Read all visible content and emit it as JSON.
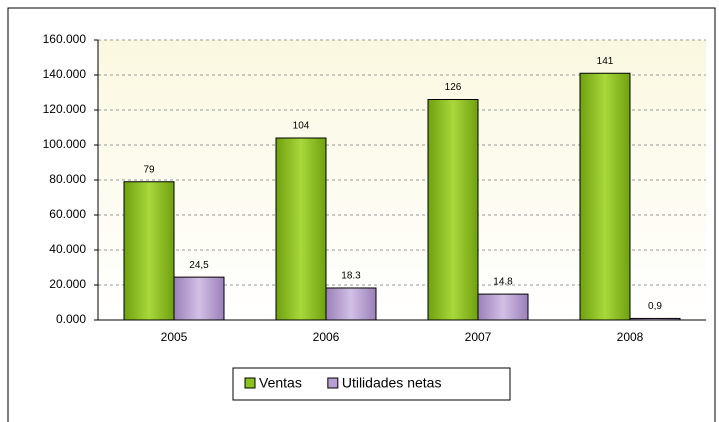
{
  "chart_data": {
    "type": "bar",
    "categories": [
      "2005",
      "2006",
      "2007",
      "2008"
    ],
    "series": [
      {
        "name": "Ventas",
        "color": "#8cc21c",
        "values": [
          79,
          104,
          126,
          141
        ]
      },
      {
        "name": "Utilidades netas",
        "color": "#b89ed2",
        "values": [
          24.5,
          18.3,
          14.8,
          0.9
        ],
        "value_labels": [
          "24,5",
          "18.3",
          "14.8",
          "0,9"
        ]
      }
    ],
    "ylim": [
      0,
      160
    ],
    "yticks": [
      {
        "value": 0,
        "label": "0.000"
      },
      {
        "value": 20,
        "label": "20.000"
      },
      {
        "value": 40,
        "label": "40.000"
      },
      {
        "value": 60,
        "label": "60.000"
      },
      {
        "value": 80,
        "label": "80.000"
      },
      {
        "value": 100,
        "label": "100.000"
      },
      {
        "value": 120,
        "label": "120.000"
      },
      {
        "value": 140,
        "label": "140.000"
      },
      {
        "value": 160,
        "label": "160.000"
      }
    ],
    "grid": true,
    "legend": "bottom"
  }
}
